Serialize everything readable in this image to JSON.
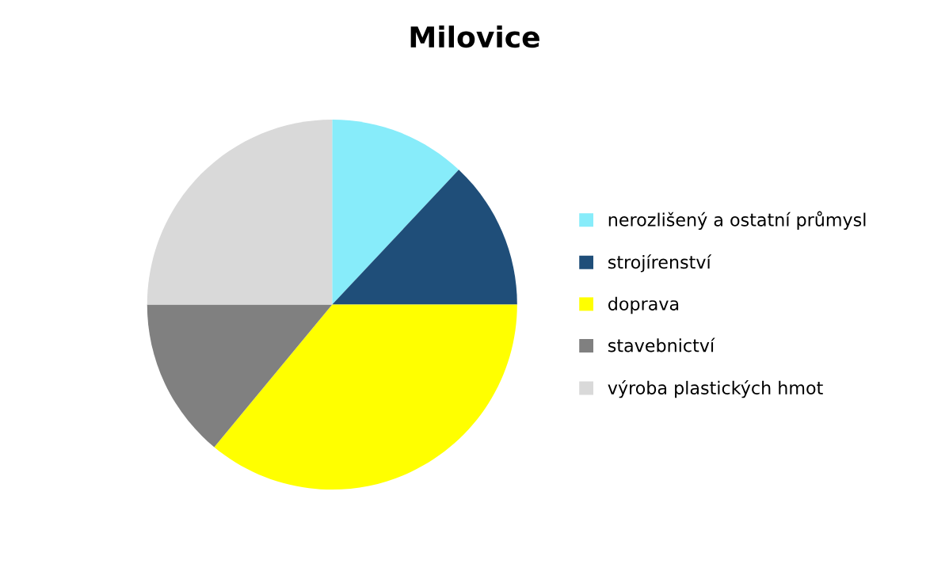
{
  "chart_data": {
    "type": "pie",
    "title": "Milovice",
    "categories": [
      "nerozlišený a ostatní průmysl",
      "strojírenství",
      "doprava",
      "stavebnictví",
      "výroba plastických hmot"
    ],
    "values": [
      12,
      13,
      36,
      14,
      25
    ],
    "colors": [
      "#87ecfa",
      "#1f4e79",
      "#ffff00",
      "#808080",
      "#d9d9d9"
    ],
    "legend": "right"
  }
}
